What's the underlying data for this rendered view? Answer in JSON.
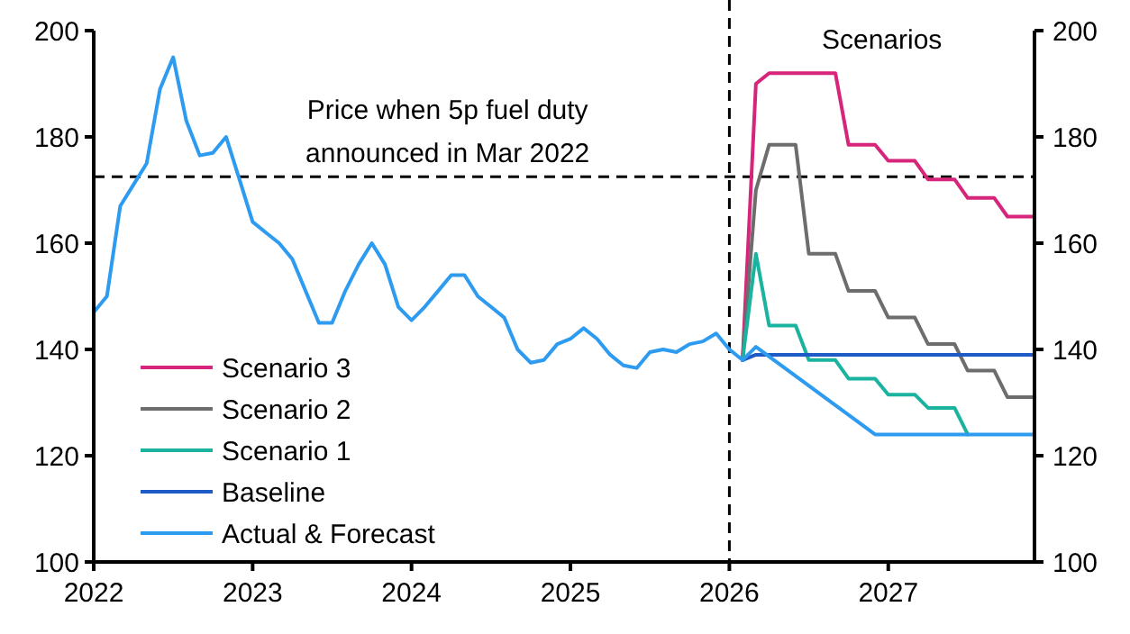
{
  "chart_data": {
    "type": "line",
    "annotations": [
      "Scenarios"
    ],
    "xlim": [
      2022,
      2027.92
    ],
    "xticks": [
      2022,
      2023,
      2024,
      2025,
      2026,
      2027
    ],
    "ylim": [
      100,
      200
    ],
    "yticks": [
      100,
      120,
      140,
      160,
      180,
      200
    ],
    "y2lim": [
      100,
      200
    ],
    "y2ticks": [
      100,
      120,
      140,
      160,
      180,
      200
    ],
    "grid": false,
    "legend": "bottom left",
    "marker": "none",
    "line_style": "solid",
    "ref_lines": [
      {
        "axis": "y",
        "value": 172.5,
        "label": "Price when 5p fuel duty\nannounced in Mar 2022",
        "color": "#000000",
        "line_style": "dashed"
      },
      {
        "axis": "x",
        "value": 2026,
        "label": null,
        "color": "#000000",
        "line_style": "dashed"
      }
    ],
    "series": [
      {
        "name": "Scenario 3",
        "color": "#d6257a",
        "x": [
          2026.083,
          2026.167,
          2026.25,
          2026.667,
          2026.75,
          2026.917,
          2027.0,
          2027.167,
          2027.25,
          2027.417,
          2027.5,
          2027.667,
          2027.75,
          2027.92
        ],
        "values": [
          138,
          190,
          192,
          192,
          178.5,
          178.5,
          175.5,
          175.5,
          172,
          172,
          168.5,
          168.5,
          165,
          165
        ]
      },
      {
        "name": "Scenario 2",
        "color": "#6d6d6d",
        "x": [
          2026.083,
          2026.167,
          2026.25,
          2026.417,
          2026.5,
          2026.667,
          2026.75,
          2026.917,
          2027.0,
          2027.167,
          2027.25,
          2027.417,
          2027.5,
          2027.667,
          2027.75,
          2027.92
        ],
        "values": [
          138,
          170,
          178.5,
          178.5,
          158,
          158,
          151,
          151,
          146,
          146,
          141,
          141,
          136,
          136,
          131,
          131
        ]
      },
      {
        "name": "Scenario 1",
        "color": "#1ab3a0",
        "x": [
          2026.083,
          2026.167,
          2026.25,
          2026.417,
          2026.5,
          2026.667,
          2026.75,
          2026.917,
          2027.0,
          2027.167,
          2027.25,
          2027.417,
          2027.5
        ],
        "values": [
          138,
          158,
          144.5,
          144.5,
          138,
          138,
          134.5,
          134.5,
          131.5,
          131.5,
          129,
          129,
          124
        ]
      },
      {
        "name": "Baseline",
        "color": "#1f5bc6",
        "x": [
          2026.083,
          2026.167,
          2027.92
        ],
        "values": [
          138,
          139,
          139
        ]
      },
      {
        "name": "Actual & Forecast",
        "color": "#2d9bf0",
        "x": [
          2022.0,
          2022.083,
          2022.167,
          2022.25,
          2022.333,
          2022.417,
          2022.5,
          2022.583,
          2022.667,
          2022.75,
          2022.833,
          2022.917,
          2023.0,
          2023.083,
          2023.167,
          2023.25,
          2023.333,
          2023.417,
          2023.5,
          2023.583,
          2023.667,
          2023.75,
          2023.833,
          2023.917,
          2024.0,
          2024.083,
          2024.167,
          2024.25,
          2024.333,
          2024.417,
          2024.5,
          2024.583,
          2024.667,
          2024.75,
          2024.833,
          2024.917,
          2025.0,
          2025.083,
          2025.167,
          2025.25,
          2025.333,
          2025.417,
          2025.5,
          2025.583,
          2025.667,
          2025.75,
          2025.833,
          2025.917,
          2026.0,
          2026.083,
          2026.167,
          2026.917,
          2027.92
        ],
        "values": [
          147,
          150,
          167,
          171,
          175,
          189,
          195,
          183,
          176.5,
          177,
          180,
          172,
          164,
          162,
          160,
          157,
          151,
          145,
          145,
          151,
          156,
          160,
          156,
          148,
          145.5,
          148,
          151,
          154,
          154,
          150,
          148,
          146,
          140,
          137.5,
          138,
          141,
          142,
          144,
          142,
          139,
          137,
          136.5,
          139.5,
          140,
          139.5,
          141,
          141.5,
          143,
          140,
          138,
          140.5,
          124,
          124
        ]
      }
    ]
  }
}
